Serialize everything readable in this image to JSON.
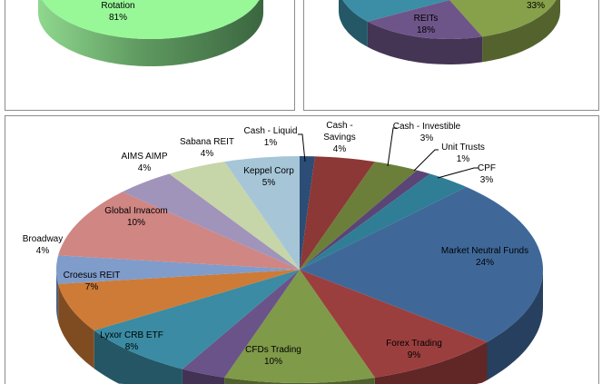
{
  "chart_data": [
    {
      "type": "pie",
      "style": "3d",
      "slices": [
        {
          "label": "Rotation",
          "value": 81,
          "display": "81%",
          "color": "#98f898"
        }
      ]
    },
    {
      "type": "pie",
      "style": "3d",
      "slices": [
        {
          "label": "",
          "value": 33,
          "display": "33%",
          "color": "#87a04a"
        },
        {
          "label": "REITs",
          "value": 18,
          "display": "18%",
          "color": "#6e5589"
        },
        {
          "label": "",
          "value": null,
          "display": "",
          "color": "#3b8ea6"
        }
      ]
    },
    {
      "type": "pie",
      "style": "3d",
      "slices": [
        {
          "label": "Cash - Liquid",
          "value": 1,
          "display": "1%",
          "color": "#2c4d75"
        },
        {
          "label": "Cash - Savings",
          "value": 4,
          "display": "4%",
          "color": "#8c3836"
        },
        {
          "label": "Cash - Investible",
          "value": 3,
          "display": "3%",
          "color": "#6b7f3a"
        },
        {
          "label": "Unit Trusts",
          "value": 1,
          "display": "1%",
          "color": "#5a4576"
        },
        {
          "label": "CPF",
          "value": 3,
          "display": "3%",
          "color": "#2f7e95"
        },
        {
          "label": "Market Neutral Funds",
          "value": 24,
          "display": "24%",
          "color": "#3f6899"
        },
        {
          "label": "Forex Trading",
          "value": 9,
          "display": "9%",
          "color": "#9b3f3e"
        },
        {
          "label": "CFDs Trading",
          "value": 10,
          "display": "10%",
          "color": "#7f9a48"
        },
        {
          "label": "",
          "value": 3,
          "display": "",
          "color": "#6a5388"
        },
        {
          "label": "Lyxor CRB ETF",
          "value": 8,
          "display": "8%",
          "color": "#3a8ba3"
        },
        {
          "label": "Croesus REIT",
          "value": 7,
          "display": "7%",
          "color": "#cd7b37"
        },
        {
          "label": "Broadway",
          "value": 4,
          "display": "4%",
          "color": "#7f9ccb"
        },
        {
          "label": "Global Invacom",
          "value": 10,
          "display": "10%",
          "color": "#d08683"
        },
        {
          "label": "AIMS AIMP",
          "value": 4,
          "display": "4%",
          "color": "#a194bb"
        },
        {
          "label": "Sabana REIT",
          "value": 4,
          "display": "4%",
          "color": "#c6d6a8"
        },
        {
          "label": "Keppel Corp",
          "value": 5,
          "display": "5%",
          "color": "#a6c6d8"
        }
      ]
    }
  ]
}
